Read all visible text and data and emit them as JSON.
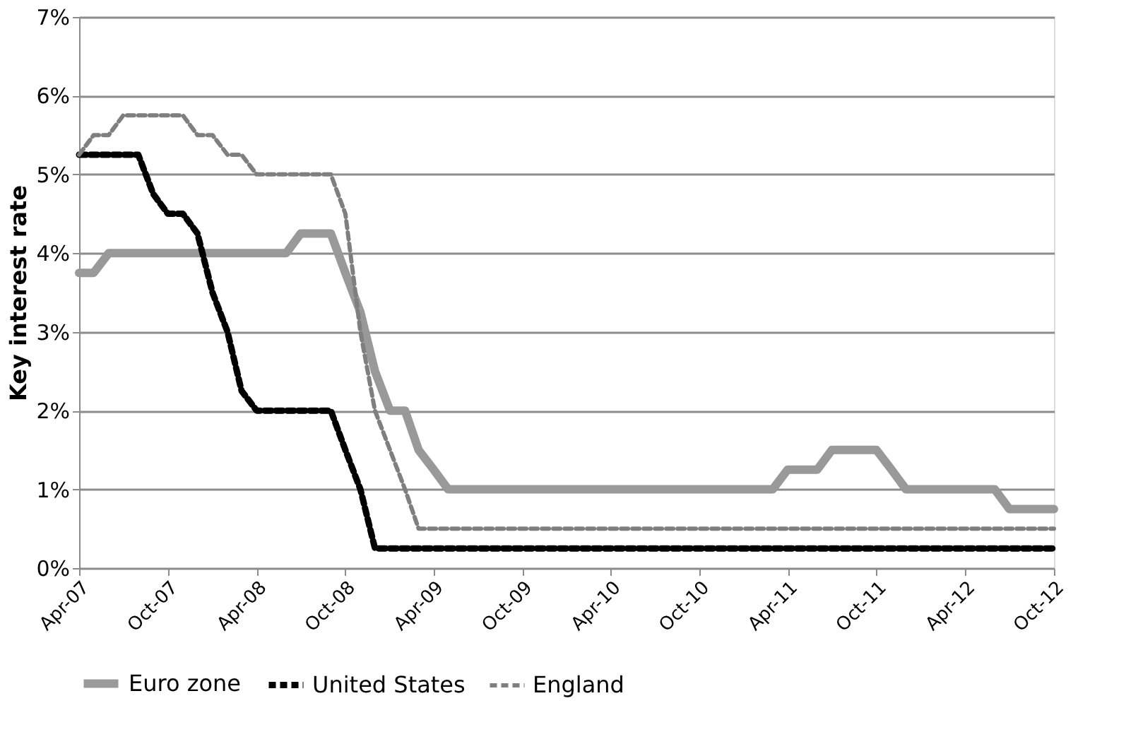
{
  "chart_data": {
    "type": "line",
    "ylabel": "Key interest rate",
    "x": [
      "2007-04",
      "2007-05",
      "2007-06",
      "2007-07",
      "2007-08",
      "2007-09",
      "2007-10",
      "2007-11",
      "2007-12",
      "2008-01",
      "2008-02",
      "2008-03",
      "2008-04",
      "2008-05",
      "2008-06",
      "2008-07",
      "2008-08",
      "2008-09",
      "2008-10",
      "2008-11",
      "2008-12",
      "2009-01",
      "2009-02",
      "2009-03",
      "2009-04",
      "2009-05",
      "2009-06",
      "2009-07",
      "2009-08",
      "2009-09",
      "2009-10",
      "2009-11",
      "2009-12",
      "2010-01",
      "2010-02",
      "2010-03",
      "2010-04",
      "2010-05",
      "2010-06",
      "2010-07",
      "2010-08",
      "2010-09",
      "2010-10",
      "2010-11",
      "2010-12",
      "2011-01",
      "2011-02",
      "2011-03",
      "2011-04",
      "2011-05",
      "2011-06",
      "2011-07",
      "2011-08",
      "2011-09",
      "2011-10",
      "2011-11",
      "2011-12",
      "2012-01",
      "2012-02",
      "2012-03",
      "2012-04",
      "2012-05",
      "2012-06",
      "2012-07",
      "2012-08",
      "2012-09",
      "2012-10"
    ],
    "series": [
      {
        "name": "Euro zone",
        "color": "#999999",
        "line_style": "solid",
        "values": [
          3.75,
          3.75,
          4.0,
          4.0,
          4.0,
          4.0,
          4.0,
          4.0,
          4.0,
          4.0,
          4.0,
          4.0,
          4.0,
          4.0,
          4.0,
          4.25,
          4.25,
          4.25,
          3.75,
          3.25,
          2.5,
          2.0,
          2.0,
          1.5,
          1.25,
          1.0,
          1.0,
          1.0,
          1.0,
          1.0,
          1.0,
          1.0,
          1.0,
          1.0,
          1.0,
          1.0,
          1.0,
          1.0,
          1.0,
          1.0,
          1.0,
          1.0,
          1.0,
          1.0,
          1.0,
          1.0,
          1.0,
          1.0,
          1.25,
          1.25,
          1.25,
          1.5,
          1.5,
          1.5,
          1.5,
          1.25,
          1.0,
          1.0,
          1.0,
          1.0,
          1.0,
          1.0,
          1.0,
          0.75,
          0.75,
          0.75,
          0.75
        ]
      },
      {
        "name": "United States",
        "color": "#000000",
        "line_style": "dashed",
        "values": [
          5.25,
          5.25,
          5.25,
          5.25,
          5.25,
          4.75,
          4.5,
          4.5,
          4.25,
          3.5,
          3.0,
          2.25,
          2.0,
          2.0,
          2.0,
          2.0,
          2.0,
          2.0,
          1.5,
          1.0,
          0.25,
          0.25,
          0.25,
          0.25,
          0.25,
          0.25,
          0.25,
          0.25,
          0.25,
          0.25,
          0.25,
          0.25,
          0.25,
          0.25,
          0.25,
          0.25,
          0.25,
          0.25,
          0.25,
          0.25,
          0.25,
          0.25,
          0.25,
          0.25,
          0.25,
          0.25,
          0.25,
          0.25,
          0.25,
          0.25,
          0.25,
          0.25,
          0.25,
          0.25,
          0.25,
          0.25,
          0.25,
          0.25,
          0.25,
          0.25,
          0.25,
          0.25,
          0.25,
          0.25,
          0.25,
          0.25,
          0.25
        ]
      },
      {
        "name": "England",
        "color": "#7f7f7f",
        "line_style": "dashed",
        "values": [
          5.25,
          5.5,
          5.5,
          5.75,
          5.75,
          5.75,
          5.75,
          5.75,
          5.5,
          5.5,
          5.25,
          5.25,
          5.0,
          5.0,
          5.0,
          5.0,
          5.0,
          5.0,
          4.5,
          3.0,
          2.0,
          1.5,
          1.0,
          0.5,
          0.5,
          0.5,
          0.5,
          0.5,
          0.5,
          0.5,
          0.5,
          0.5,
          0.5,
          0.5,
          0.5,
          0.5,
          0.5,
          0.5,
          0.5,
          0.5,
          0.5,
          0.5,
          0.5,
          0.5,
          0.5,
          0.5,
          0.5,
          0.5,
          0.5,
          0.5,
          0.5,
          0.5,
          0.5,
          0.5,
          0.5,
          0.5,
          0.5,
          0.5,
          0.5,
          0.5,
          0.5,
          0.5,
          0.5,
          0.5,
          0.5,
          0.5,
          0.5
        ]
      }
    ],
    "xlim": [
      "2007-04",
      "2012-10"
    ],
    "xticks": [
      {
        "value": "2007-04",
        "label": "Apr-07"
      },
      {
        "value": "2007-10",
        "label": "Oct-07"
      },
      {
        "value": "2008-04",
        "label": "Apr-08"
      },
      {
        "value": "2008-10",
        "label": "Oct-08"
      },
      {
        "value": "2009-04",
        "label": "Apr-09"
      },
      {
        "value": "2009-10",
        "label": "Oct-09"
      },
      {
        "value": "2010-04",
        "label": "Apr-10"
      },
      {
        "value": "2010-10",
        "label": "Oct-10"
      },
      {
        "value": "2011-04",
        "label": "Apr-11"
      },
      {
        "value": "2011-10",
        "label": "Oct-11"
      },
      {
        "value": "2012-04",
        "label": "Apr-12"
      },
      {
        "value": "2012-10",
        "label": "Oct-12"
      }
    ],
    "ylim": [
      0,
      7
    ],
    "yticks": [
      {
        "value": 0,
        "label": "0%"
      },
      {
        "value": 1,
        "label": "1%"
      },
      {
        "value": 2,
        "label": "2%"
      },
      {
        "value": 3,
        "label": "3%"
      },
      {
        "value": 4,
        "label": "4%"
      },
      {
        "value": 5,
        "label": "5%"
      },
      {
        "value": 6,
        "label": "6%"
      },
      {
        "value": 7,
        "label": "7%"
      }
    ],
    "grid": "y",
    "legend": "bottom",
    "marker": "none"
  }
}
